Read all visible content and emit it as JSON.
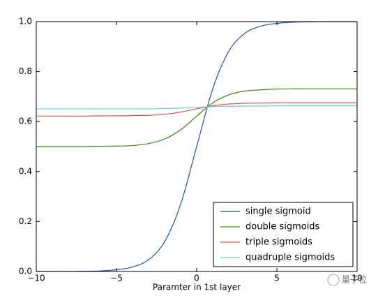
{
  "chart_data": {
    "type": "line",
    "x_label": "Paramter in 1st layer",
    "watermark": "量子位",
    "x": [
      -10,
      -9,
      -8,
      -7,
      -6,
      -5,
      -4,
      -3,
      -2,
      -1,
      0,
      1,
      2,
      3,
      4,
      5,
      6,
      7,
      8,
      9,
      10
    ],
    "series": [
      {
        "name": "single sigmoid",
        "color": "#1f4fb8",
        "values": [
          0.0,
          0.0,
          0.0,
          0.001,
          0.002,
          0.007,
          0.018,
          0.047,
          0.119,
          0.269,
          0.5,
          0.731,
          0.881,
          0.953,
          0.982,
          0.993,
          0.998,
          0.999,
          1.0,
          1.0,
          1.0
        ]
      },
      {
        "name": "double sigmoids",
        "color": "#3f7f1f",
        "values": [
          0.5,
          0.5,
          0.5,
          0.5,
          0.501,
          0.502,
          0.504,
          0.512,
          0.53,
          0.567,
          0.622,
          0.675,
          0.707,
          0.722,
          0.727,
          0.73,
          0.731,
          0.731,
          0.731,
          0.731,
          0.731
        ]
      },
      {
        "name": "triple sigmoids",
        "color": "#d9534f",
        "values": [
          0.622,
          0.622,
          0.622,
          0.622,
          0.623,
          0.623,
          0.624,
          0.625,
          0.629,
          0.638,
          0.651,
          0.663,
          0.67,
          0.673,
          0.674,
          0.675,
          0.675,
          0.675,
          0.675,
          0.675,
          0.675
        ]
      },
      {
        "name": "quadruple sigmoids",
        "color": "#6fcdc8",
        "values": [
          0.651,
          0.651,
          0.651,
          0.651,
          0.651,
          0.651,
          0.651,
          0.651,
          0.652,
          0.654,
          0.657,
          0.66,
          0.661,
          0.662,
          0.662,
          0.663,
          0.663,
          0.663,
          0.663,
          0.663,
          0.663
        ]
      }
    ],
    "xlim": [
      -10,
      10
    ],
    "ylim": [
      0,
      1
    ],
    "xticks": [
      {
        "value": -10,
        "label": "−10"
      },
      {
        "value": -5,
        "label": "−5"
      },
      0,
      5,
      10
    ],
    "yticks": [
      {
        "value": 0,
        "label": "0.0"
      },
      0.2,
      0.4,
      0.6,
      0.8,
      {
        "value": 1,
        "label": "1.0"
      }
    ],
    "legend": "lower right",
    "grid": false
  }
}
